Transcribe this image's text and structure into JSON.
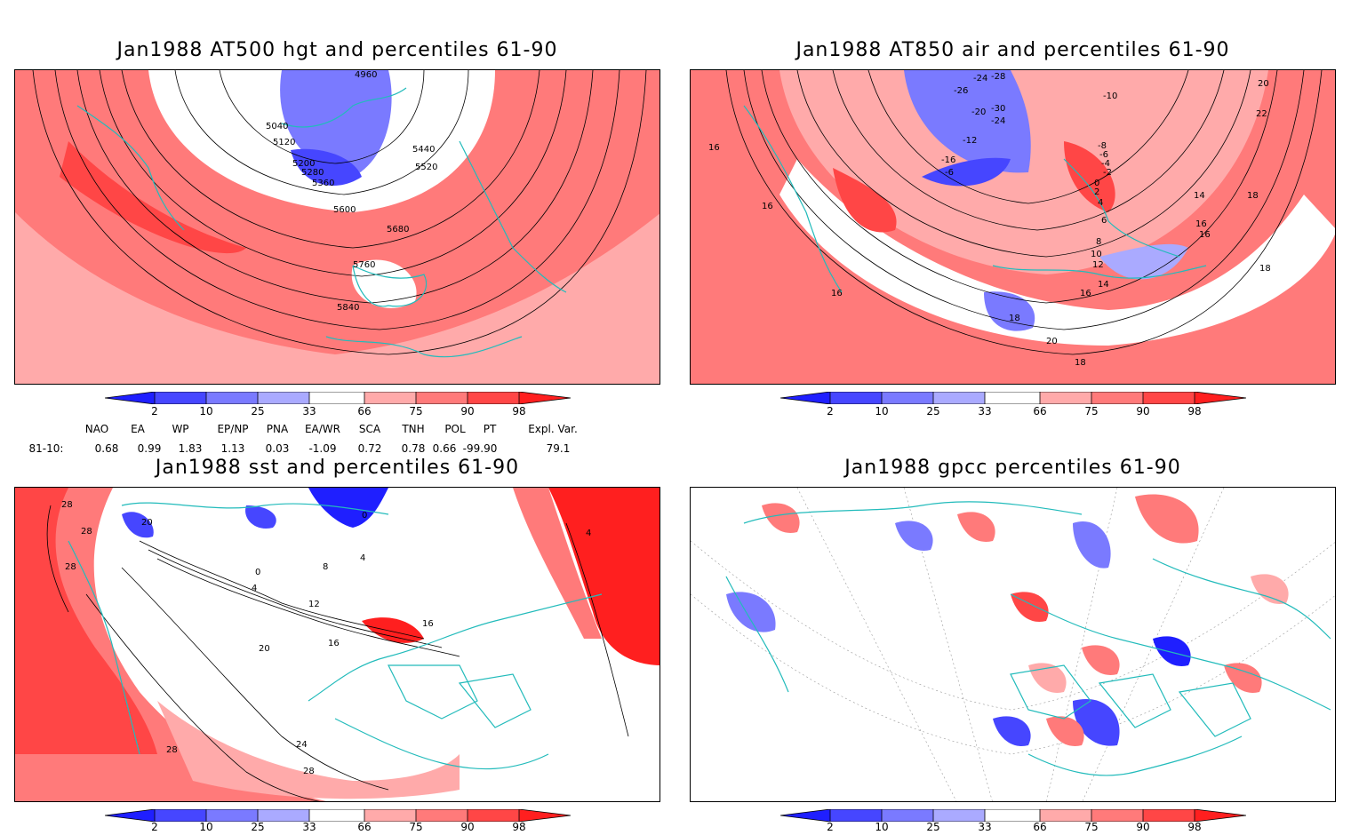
{
  "colors": {
    "very_low": "#1f1fff",
    "low": "#4646ff",
    "mid_low": "#7a7aff",
    "below": "#aaaaff",
    "above": "#ffaaaa",
    "mid_high": "#ff7a7a",
    "high": "#ff4646",
    "very_high": "#ff1f1f",
    "coast": "#22bbbb"
  },
  "legend_ticks": [
    "2",
    "10",
    "25",
    "33",
    "66",
    "75",
    "90",
    "98"
  ],
  "panels": [
    {
      "title": "Jan1988 AT500 hgt and percentiles 61-90",
      "contour_labels": [
        "4960",
        "5040",
        "5120",
        "5200",
        "5280",
        "5360",
        "5440",
        "5520",
        "5600",
        "5680",
        "5760",
        "5840"
      ]
    },
    {
      "title": "Jan1988 AT850 air and percentiles 61-90",
      "contour_labels": [
        "-28",
        "-26",
        "-24",
        "-30",
        "-20",
        "-24",
        "-12",
        "-16",
        "-6",
        "-10",
        "-8",
        "-6",
        "-4",
        "-2",
        "0",
        "2",
        "4",
        "6",
        "8",
        "10",
        "12",
        "14",
        "16",
        "18",
        "20",
        "22",
        "16",
        "16",
        "16",
        "18",
        "14",
        "16",
        "16",
        "18",
        "20",
        "18"
      ]
    },
    {
      "title": "Jan1988 sst and percentiles 61-90",
      "contour_labels": [
        "28",
        "28",
        "28",
        "20",
        "0",
        "4",
        "8",
        "0",
        "4",
        "12",
        "16",
        "16",
        "20",
        "24",
        "28",
        "28",
        "4"
      ]
    },
    {
      "title": "Jan1988 gpcc percentiles 61-90",
      "contour_labels": []
    }
  ],
  "indices": {
    "headers": [
      "NAO",
      "EA",
      "WP",
      "EP/NP",
      "PNA",
      "EA/WR",
      "SCA",
      "TNH",
      "POL",
      "PT",
      "Expl. Var."
    ],
    "row_label": "81-10:",
    "values": [
      "0.68",
      "0.99",
      "1.83",
      "1.13",
      "0.03",
      "-1.09",
      "0.72",
      "0.78",
      "0.66",
      "-99.90",
      "79.1"
    ]
  }
}
